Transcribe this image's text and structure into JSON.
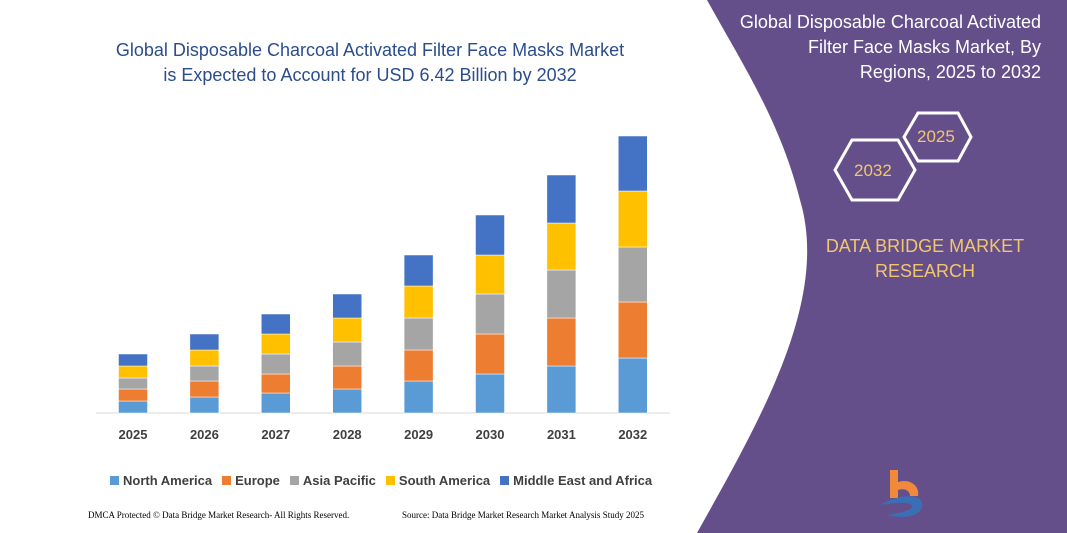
{
  "header": {
    "title_line1": "Global Disposable Charcoal Activated Filter Face Masks Market",
    "title_line2": "is Expected to Account for USD 6.42  Billion by 2032"
  },
  "side": {
    "title_line1": "Global Disposable Charcoal Activated",
    "title_line2": "Filter Face Masks Market, By",
    "title_line3": "Regions, 2025 to 2032",
    "hex1": "2025",
    "hex2": "2032",
    "brand_line1": "DATA BRIDGE MARKET",
    "brand_line2": "RESEARCH",
    "logo_text": "DATA BRIDGE MARKET RESEARCH",
    "bg_color": "#654f8a"
  },
  "footer": {
    "left": "DMCA Protected © Data Bridge Market Research-  All Rights Reserved.",
    "right": "Source: Data Bridge Market Research Market Analysis Study 2025"
  },
  "chart_data": {
    "type": "stacked-bar",
    "title": "",
    "xlabel": "",
    "ylabel": "",
    "grid": false,
    "legend": "bottom",
    "categories": [
      "2025",
      "2026",
      "2027",
      "2028",
      "2029",
      "2030",
      "2031",
      "2032"
    ],
    "series": [
      {
        "name": "North America",
        "color": "#5b9bd5",
        "values": [
          12,
          16,
          20,
          24,
          32,
          39,
          47,
          55
        ]
      },
      {
        "name": "Europe",
        "color": "#ed7d31",
        "values": [
          12,
          16,
          19,
          23,
          31,
          40,
          48,
          56
        ]
      },
      {
        "name": "Asia Pacific",
        "color": "#a5a5a5",
        "values": [
          11,
          15,
          20,
          24,
          32,
          40,
          48,
          55
        ]
      },
      {
        "name": "South America",
        "color": "#ffc000",
        "values": [
          12,
          16,
          20,
          24,
          32,
          39,
          47,
          56
        ]
      },
      {
        "name": "Middle East and Africa",
        "color": "#4472c4",
        "values": [
          12,
          16,
          20,
          24,
          31,
          40,
          48,
          55
        ]
      }
    ]
  }
}
